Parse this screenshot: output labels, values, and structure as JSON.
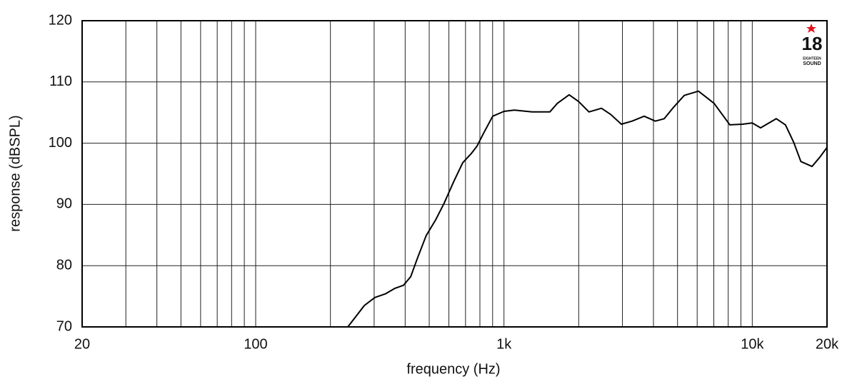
{
  "chart_data": {
    "type": "line",
    "xlabel": "frequency (Hz)",
    "ylabel": "response (dBSPL)",
    "xscale": "log",
    "grid": true,
    "xlim": [
      20,
      20000
    ],
    "ylim": [
      70,
      120
    ],
    "xticks": [
      20,
      100,
      {
        "value": 1000,
        "label": "1k"
      },
      {
        "value": 10000,
        "label": "10k"
      },
      {
        "value": 20000,
        "label": "20k"
      }
    ],
    "xgrid": [
      30,
      40,
      50,
      60,
      70,
      80,
      90,
      200,
      300,
      400,
      500,
      600,
      700,
      800,
      900,
      2000,
      3000,
      4000,
      5000,
      6000,
      7000,
      8000,
      9000
    ],
    "yticks": [
      70,
      80,
      90,
      100,
      110,
      120
    ],
    "logo": {
      "number": "18",
      "line1": "EIGHTEEN",
      "line2": "SOUND",
      "color": "#e0141e"
    },
    "series": [
      {
        "color": "#000000",
        "x": [
          235,
          251,
          274,
          302,
          333,
          364,
          394,
          421,
          450,
          486,
          531,
          574,
          627,
          682,
          738,
          778,
          832,
          901,
          1000,
          1100,
          1297,
          1530,
          1640,
          1830,
          2000,
          2200,
          2470,
          2690,
          2970,
          3280,
          3670,
          4070,
          4420,
          4780,
          5320,
          6070,
          7020,
          8120,
          9150,
          10000,
          10800,
          12500,
          13600,
          14700,
          15700,
          17400,
          18700,
          20000
        ],
        "values": [
          70,
          71.5,
          73.5,
          74.8,
          75.4,
          76.3,
          76.8,
          78.2,
          81.4,
          84.9,
          87.5,
          90.2,
          93.7,
          96.8,
          98.3,
          99.5,
          101.8,
          104.4,
          105.2,
          105.4,
          105.1,
          105.1,
          106.5,
          107.9,
          106.8,
          105.1,
          105.7,
          104.7,
          103.1,
          103.6,
          104.4,
          103.6,
          104.0,
          105.7,
          107.8,
          108.5,
          106.5,
          103.0,
          103.1,
          103.3,
          102.5,
          104.0,
          103.0,
          100.1,
          97.0,
          96.2,
          97.7,
          99.3
        ]
      }
    ]
  }
}
